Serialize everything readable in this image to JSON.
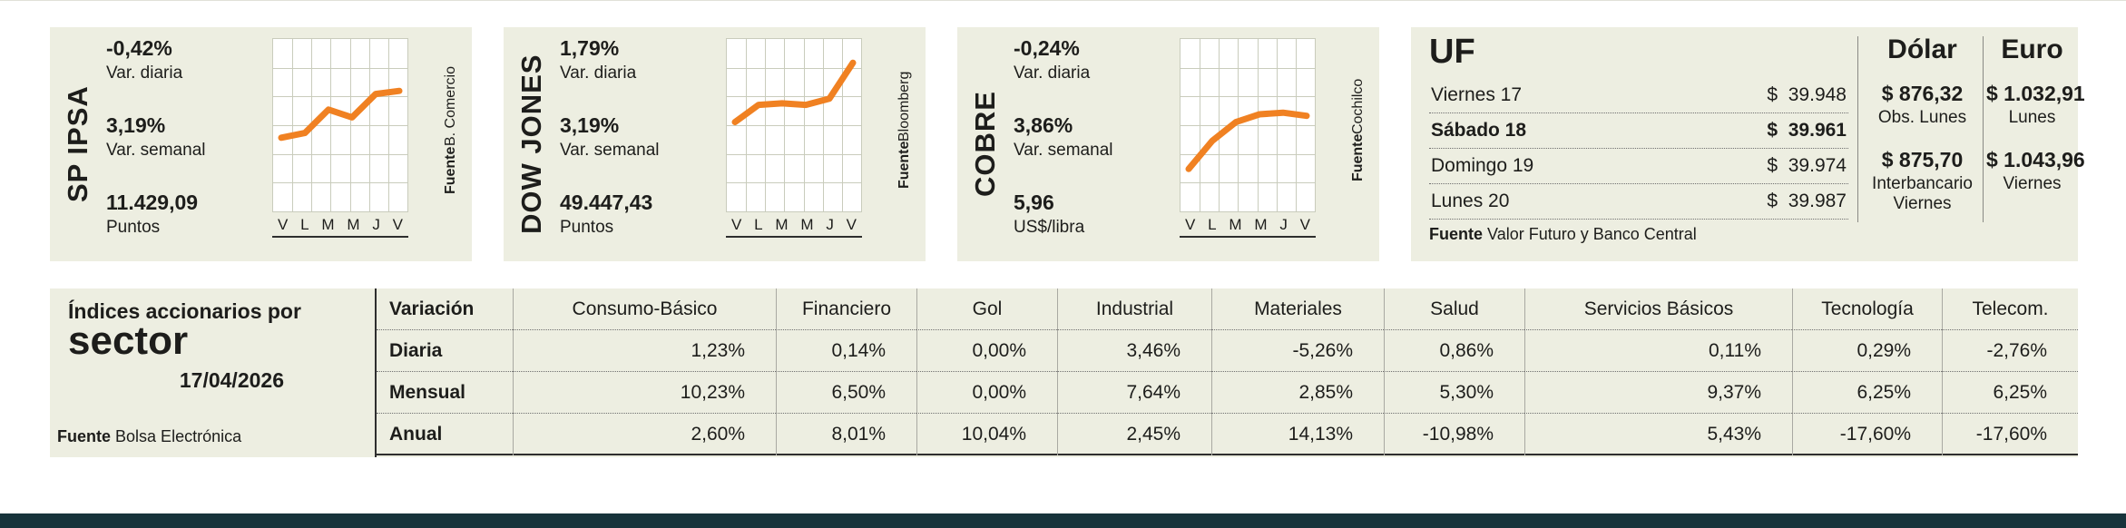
{
  "colors": {
    "background": "#edeee1",
    "accent": "#f08122",
    "chart_grid": "#c9ccbc",
    "text": "#1d1d1b",
    "bottom_bar": "#17333b"
  },
  "indices": [
    {
      "name": "SP IPSA",
      "var_diaria": "-0,42%",
      "var_diaria_label": "Var. diaria",
      "var_semanal": "3,19%",
      "var_semanal_label": "Var. semanal",
      "value": "11.429,09",
      "value_label": "Puntos",
      "x_labels": [
        "V",
        "L",
        "M",
        "M",
        "J",
        "V"
      ],
      "fuente_label": "Fuente",
      "fuente": "B. Comercio"
    },
    {
      "name": "DOW JONES",
      "var_diaria": "1,79%",
      "var_diaria_label": "Var. diaria",
      "var_semanal": "3,19%",
      "var_semanal_label": "Var. semanal",
      "value": "49.447,43",
      "value_label": "Puntos",
      "x_labels": [
        "V",
        "L",
        "M",
        "M",
        "J",
        "V"
      ],
      "fuente_label": "Fuente",
      "fuente": "Bloomberg"
    },
    {
      "name": "COBRE",
      "var_diaria": "-0,24%",
      "var_diaria_label": "Var. diaria",
      "var_semanal": "3,86%",
      "var_semanal_label": "Var. semanal",
      "value": "5,96",
      "value_label": "US$/libra",
      "x_labels": [
        "V",
        "L",
        "M",
        "M",
        "J",
        "V"
      ],
      "fuente_label": "Fuente",
      "fuente": "Cochilco"
    }
  ],
  "uf": {
    "title": "UF",
    "rows": [
      {
        "day": "Viernes 17",
        "value": "$  39.948"
      },
      {
        "day": "Sábado 18",
        "value": "$  39.961"
      },
      {
        "day": "Domingo 19",
        "value": "$  39.974"
      },
      {
        "day": "Lunes 20",
        "value": "$  39.987"
      }
    ],
    "fuente_label": "Fuente",
    "fuente": "Valor Futuro y Banco Central"
  },
  "dolar": {
    "title": "Dólar",
    "value_obs": "$ 876,32",
    "label_obs": "Obs. Lunes",
    "value_inter": "$ 875,70",
    "label_inter": "Interbancario Viernes"
  },
  "euro": {
    "title": "Euro",
    "value_1": "$ 1.032,91",
    "label_1": "Lunes",
    "value_2": "$ 1.043,96",
    "label_2": "Viernes"
  },
  "sector_table": {
    "title_line_1": "Índices accionarios por",
    "title_line_2": "sector",
    "date": "17/04/2026",
    "fuente_label": "Fuente",
    "fuente": "Bolsa Electrónica",
    "columns": [
      "Variación",
      "Consumo-Básico",
      "Financiero",
      "Gol",
      "Industrial",
      "Materiales",
      "Salud",
      "Servicios Básicos",
      "Tecnología",
      "Telecom."
    ],
    "rows": [
      {
        "label": "Diaria",
        "values": [
          "1,23%",
          "0,14%",
          "0,00%",
          "3,46%",
          "-5,26%",
          "0,86%",
          "0,11%",
          "0,29%",
          "-2,76%"
        ]
      },
      {
        "label": "Mensual",
        "values": [
          "10,23%",
          "6,50%",
          "0,00%",
          "7,64%",
          "2,85%",
          "5,30%",
          "9,37%",
          "6,25%",
          "6,25%"
        ]
      },
      {
        "label": "Anual",
        "values": [
          "2,60%",
          "8,01%",
          "10,04%",
          "2,45%",
          "14,13%",
          "-10,98%",
          "5,43%",
          "-17,60%",
          "-17,60%"
        ]
      }
    ]
  },
  "chart_data": [
    {
      "type": "line",
      "title": "SP IPSA",
      "x": [
        "V",
        "L",
        "M",
        "M",
        "J",
        "V"
      ],
      "values": [
        42,
        45,
        60,
        55,
        70,
        72
      ],
      "ylim": [
        0,
        100
      ],
      "grid": true,
      "legend": "none",
      "line_color": "#f08122"
    },
    {
      "type": "line",
      "title": "DOW JONES",
      "x": [
        "V",
        "L",
        "M",
        "M",
        "J",
        "V"
      ],
      "values": [
        52,
        63,
        64,
        63,
        67,
        90
      ],
      "ylim": [
        0,
        100
      ],
      "grid": true,
      "legend": "none",
      "line_color": "#f08122"
    },
    {
      "type": "line",
      "title": "COBRE",
      "x": [
        "V",
        "L",
        "M",
        "M",
        "J",
        "V"
      ],
      "values": [
        22,
        40,
        52,
        57,
        58,
        56
      ],
      "ylim": [
        0,
        100
      ],
      "grid": true,
      "legend": "none",
      "line_color": "#f08122"
    },
    {
      "type": "table",
      "title": "Índices accionarios por sector",
      "columns": [
        "Variación",
        "Consumo-Básico",
        "Financiero",
        "Gol",
        "Industrial",
        "Materiales",
        "Salud",
        "Servicios Básicos",
        "Tecnología",
        "Telecom."
      ],
      "rows": [
        [
          "Diaria",
          "1,23%",
          "0,14%",
          "0,00%",
          "3,46%",
          "-5,26%",
          "0,86%",
          "0,11%",
          "0,29%",
          "-2,76%"
        ],
        [
          "Mensual",
          "10,23%",
          "6,50%",
          "0,00%",
          "7,64%",
          "2,85%",
          "5,30%",
          "9,37%",
          "6,25%",
          "6,25%"
        ],
        [
          "Anual",
          "2,60%",
          "8,01%",
          "10,04%",
          "2,45%",
          "14,13%",
          "-10,98%",
          "5,43%",
          "-17,60%",
          "-17,60%"
        ]
      ]
    }
  ]
}
